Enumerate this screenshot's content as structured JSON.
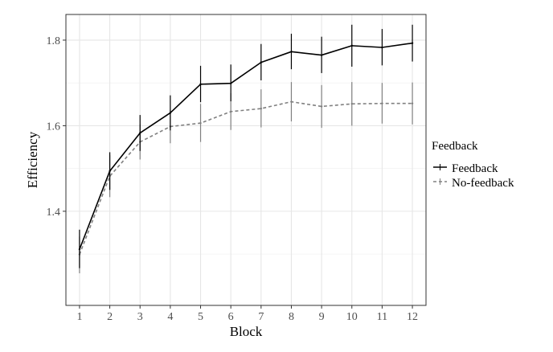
{
  "chart_data": {
    "type": "line",
    "title": "",
    "xlabel": "Block",
    "ylabel": "Efficiency",
    "x": [
      1,
      2,
      3,
      4,
      5,
      6,
      7,
      8,
      9,
      10,
      11,
      12
    ],
    "x_ticks": [
      "1",
      "2",
      "3",
      "4",
      "5",
      "6",
      "7",
      "8",
      "9",
      "10",
      "11",
      "12"
    ],
    "xlim": [
      0.55,
      12.45
    ],
    "ylim": [
      1.18,
      1.86
    ],
    "y_ticks": [
      1.4,
      1.6,
      1.8
    ],
    "y_tick_labels": [
      "1.4",
      "1.6",
      "1.8"
    ],
    "grid": true,
    "legend": {
      "title": "Feedback",
      "placement": "right"
    },
    "series": [
      {
        "name": "Feedback",
        "color": "#000000",
        "dash": "solid",
        "values": [
          1.311,
          1.494,
          1.583,
          1.63,
          1.697,
          1.699,
          1.748,
          1.773,
          1.765,
          1.787,
          1.783,
          1.793
        ],
        "lower": [
          1.267,
          1.45,
          1.541,
          1.589,
          1.655,
          1.657,
          1.706,
          1.732,
          1.723,
          1.738,
          1.741,
          1.75
        ],
        "upper": [
          1.357,
          1.538,
          1.625,
          1.671,
          1.74,
          1.743,
          1.791,
          1.815,
          1.808,
          1.836,
          1.826,
          1.836
        ]
      },
      {
        "name": "No-feedback",
        "color": "#808080",
        "dash": "dashed",
        "values": [
          1.299,
          1.482,
          1.562,
          1.598,
          1.606,
          1.633,
          1.64,
          1.656,
          1.645,
          1.651,
          1.652,
          1.652
        ],
        "lower": [
          1.255,
          1.433,
          1.521,
          1.559,
          1.562,
          1.59,
          1.596,
          1.61,
          1.595,
          1.6,
          1.605,
          1.603
        ],
        "upper": [
          1.341,
          1.531,
          1.603,
          1.637,
          1.651,
          1.676,
          1.685,
          1.702,
          1.695,
          1.702,
          1.7,
          1.701
        ]
      }
    ]
  }
}
